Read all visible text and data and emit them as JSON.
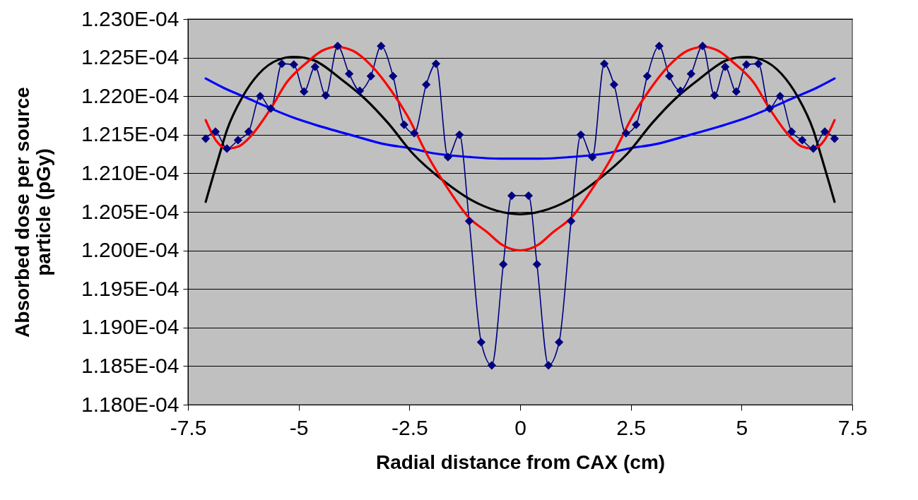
{
  "chart_data": {
    "type": "line",
    "xlabel": "Radial distance from CAX (cm)",
    "ylabel": "Absorbed dose per source particle (pGy)",
    "xlim": [
      -7.5,
      7.5
    ],
    "xticks": [
      -7.5,
      -5,
      -2.5,
      0,
      2.5,
      5,
      7.5
    ],
    "ylim": [
      0.000118,
      0.000123
    ],
    "yticks": [
      {
        "value": 0.000118,
        "label": "1.180E-04"
      },
      {
        "value": 0.0001185,
        "label": "1.185E-04"
      },
      {
        "value": 0.000119,
        "label": "1.190E-04"
      },
      {
        "value": 0.0001195,
        "label": "1.195E-04"
      },
      {
        "value": 0.00012,
        "label": "1.200E-04"
      },
      {
        "value": 0.0001205,
        "label": "1.205E-04"
      },
      {
        "value": 0.000121,
        "label": "1.210E-04"
      },
      {
        "value": 0.0001215,
        "label": "1.215E-04"
      },
      {
        "value": 0.000122,
        "label": "1.220E-04"
      },
      {
        "value": 0.0001225,
        "label": "1.225E-04"
      },
      {
        "value": 0.000123,
        "label": "1.230E-04"
      }
    ],
    "grid": "y",
    "series": [
      {
        "color": "#000080",
        "marker": "diamond",
        "x": [
          -7.1,
          -6.88,
          -6.62,
          -6.37,
          -6.13,
          -5.87,
          -5.63,
          -5.38,
          -5.11,
          -4.88,
          -4.63,
          -4.39,
          -4.12,
          -3.86,
          -3.62,
          -3.37,
          -3.14,
          -2.87,
          -2.62,
          -2.39,
          -2.12,
          -1.9,
          -1.63,
          -1.37,
          -1.15,
          -0.88,
          -0.64,
          -0.38,
          -0.19,
          0.19,
          0.38,
          0.64,
          0.88,
          1.15,
          1.37,
          1.63,
          1.9,
          2.12,
          2.39,
          2.62,
          2.87,
          3.14,
          3.37,
          3.62,
          3.86,
          4.12,
          4.39,
          4.63,
          4.88,
          5.11,
          5.38,
          5.63,
          5.87,
          6.13,
          6.37,
          6.62,
          6.88,
          7.1
        ],
        "values": [
          0.00012145,
          0.00012154,
          0.00012132,
          0.00012143,
          0.00012154,
          0.000122,
          0.00012184,
          0.00012242,
          0.00012241,
          0.00012206,
          0.00012238,
          0.00012201,
          0.00012265,
          0.00012229,
          0.00012207,
          0.00012226,
          0.00012265,
          0.00012226,
          0.00012163,
          0.00012152,
          0.00012215,
          0.00012242,
          0.00012121,
          0.0001215,
          0.00012038,
          0.00011881,
          0.00011851,
          0.00011982,
          0.00012071,
          0.00012071,
          0.00011982,
          0.00011851,
          0.00011881,
          0.00012038,
          0.0001215,
          0.00012121,
          0.00012242,
          0.00012215,
          0.00012152,
          0.00012163,
          0.00012226,
          0.00012265,
          0.00012226,
          0.00012207,
          0.00012229,
          0.00012265,
          0.00012201,
          0.00012238,
          0.00012206,
          0.00012241,
          0.00012242,
          0.00012184,
          0.000122,
          0.00012154,
          0.00012143,
          0.00012132,
          0.00012154,
          0.00012145
        ]
      },
      {
        "color": "#0000ff",
        "marker": "none",
        "x": [
          -7.1,
          -6.7,
          -6.22,
          -5.63,
          -5.11,
          -4.63,
          -3.78,
          -3.08,
          -2.44,
          -1.96,
          -1.12,
          -0.46,
          0,
          0.46,
          1.12,
          1.96,
          2.44,
          3.08,
          3.78,
          4.63,
          5.11,
          5.63,
          6.22,
          6.7,
          7.1
        ],
        "values": [
          0.00012223,
          0.00012211,
          0.00012199,
          0.00012184,
          0.00012172,
          0.00012163,
          0.00012149,
          0.00012138,
          0.00012132,
          0.00012126,
          0.00012121,
          0.00012119,
          0.00012119,
          0.00012119,
          0.00012121,
          0.00012126,
          0.00012132,
          0.00012138,
          0.00012149,
          0.00012163,
          0.00012172,
          0.00012184,
          0.00012199,
          0.00012211,
          0.00012223
        ]
      },
      {
        "color": "#000000",
        "marker": "none",
        "x": [
          -7.1,
          -6.97,
          -6.81,
          -6.62,
          -6.27,
          -5.9,
          -5.47,
          -5.11,
          -4.68,
          -4.04,
          -3.51,
          -2.98,
          -2.43,
          -1.68,
          -1.12,
          -0.8,
          -0.24,
          0,
          0.24,
          0.8,
          1.12,
          1.68,
          2.43,
          2.98,
          3.51,
          4.04,
          4.68,
          5.11,
          5.47,
          5.9,
          6.27,
          6.62,
          6.81,
          6.97,
          7.1
        ],
        "values": [
          0.00012063,
          0.00012089,
          0.0001212,
          0.00012156,
          0.00012199,
          0.00012229,
          0.00012247,
          0.00012251,
          0.00012247,
          0.00012222,
          0.00012197,
          0.00012165,
          0.00012126,
          0.00012088,
          0.00012066,
          0.00012057,
          0.00012048,
          0.00012047,
          0.00012048,
          0.00012057,
          0.00012066,
          0.00012088,
          0.00012126,
          0.00012165,
          0.00012197,
          0.00012222,
          0.00012247,
          0.00012251,
          0.00012247,
          0.00012229,
          0.00012199,
          0.00012156,
          0.0001212,
          0.00012089,
          0.00012063
        ]
      },
      {
        "color": "#ff0000",
        "marker": "none",
        "x": [
          -7.1,
          -6.86,
          -6.62,
          -6.35,
          -6.1,
          -5.63,
          -5.27,
          -4.83,
          -4.47,
          -4.15,
          -3.78,
          -3.35,
          -2.92,
          -2.55,
          -2.07,
          -1.63,
          -1.18,
          -0.73,
          -0.4,
          0,
          0.4,
          0.73,
          1.18,
          1.63,
          2.07,
          2.55,
          2.92,
          3.35,
          3.78,
          4.15,
          4.47,
          4.83,
          5.27,
          5.63,
          6.1,
          6.35,
          6.62,
          6.86,
          7.1
        ],
        "values": [
          0.00012169,
          0.00012142,
          0.00012132,
          0.00012135,
          0.00012147,
          0.00012184,
          0.00012218,
          0.00012243,
          0.00012259,
          0.00012264,
          0.00012259,
          0.00012239,
          0.00012208,
          0.00012175,
          0.00012121,
          0.0001208,
          0.00012044,
          0.00012023,
          0.00012007,
          0.00012,
          0.00012007,
          0.00012023,
          0.00012044,
          0.0001208,
          0.00012121,
          0.00012175,
          0.00012208,
          0.00012239,
          0.00012259,
          0.00012264,
          0.00012259,
          0.00012243,
          0.00012218,
          0.00012184,
          0.00012147,
          0.00012135,
          0.00012132,
          0.00012142,
          0.00012169
        ]
      }
    ]
  }
}
